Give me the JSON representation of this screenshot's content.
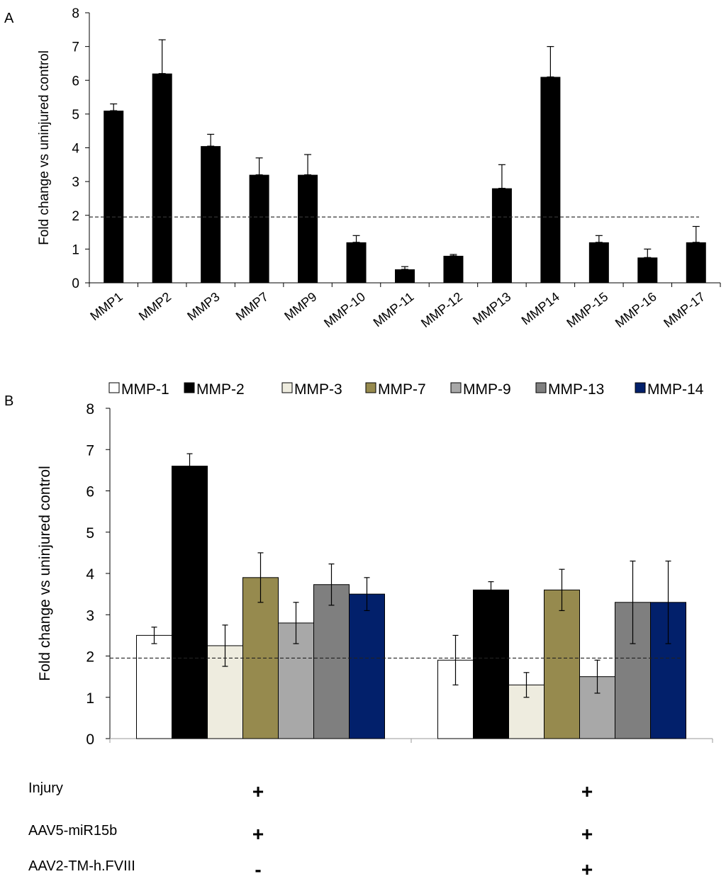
{
  "chart_data": [
    {
      "panel": "A",
      "type": "bar",
      "ylabel": "Fold change vs uninjured control",
      "ylim": [
        0,
        8
      ],
      "yticks": [
        0,
        1,
        2,
        3,
        4,
        5,
        6,
        7,
        8
      ],
      "threshold": 1.95,
      "categories": [
        "MMP1",
        "MMP2",
        "MMP3",
        "MMP7",
        "MMP9",
        "MMP-10",
        "MMP-11",
        "MMP-12",
        "MMP13",
        "MMP14",
        "MMP-15",
        "MMP-16",
        "MMP-17"
      ],
      "values": [
        5.1,
        6.2,
        4.05,
        3.2,
        3.2,
        1.2,
        0.4,
        0.8,
        2.8,
        6.1,
        1.2,
        0.75,
        1.2
      ],
      "errors": [
        0.2,
        1.0,
        0.35,
        0.5,
        0.6,
        0.2,
        0.08,
        0.04,
        0.7,
        0.9,
        0.2,
        0.25,
        0.47
      ]
    },
    {
      "panel": "B",
      "type": "bar",
      "ylabel": "Fold change vs uninjured control",
      "ylim": [
        0,
        8
      ],
      "yticks": [
        0,
        1,
        2,
        3,
        4,
        5,
        6,
        7,
        8
      ],
      "threshold": 1.95,
      "legend_position": "top",
      "series": [
        {
          "name": "MMP-1",
          "color": "#ffffff",
          "values": [
            2.5,
            1.9
          ],
          "errors": [
            0.2,
            0.6
          ]
        },
        {
          "name": "MMP-2",
          "color": "#000000",
          "values": [
            6.6,
            3.6
          ],
          "errors": [
            0.3,
            0.2
          ]
        },
        {
          "name": "MMP-3",
          "color": "#eeecdf",
          "values": [
            2.25,
            1.3
          ],
          "errors": [
            0.5,
            0.3
          ]
        },
        {
          "name": "MMP-7",
          "color": "#968a4e",
          "values": [
            3.9,
            3.6
          ],
          "errors": [
            0.6,
            0.5
          ]
        },
        {
          "name": "MMP-9",
          "color": "#a8a8a8",
          "values": [
            2.8,
            1.5
          ],
          "errors": [
            0.5,
            0.4
          ]
        },
        {
          "name": "MMP-13",
          "color": "#7f7f7f",
          "values": [
            3.73,
            3.3
          ],
          "errors": [
            0.5,
            1.0
          ]
        },
        {
          "name": "MMP-14",
          "color": "#02206b",
          "values": [
            3.5,
            3.3
          ],
          "errors": [
            0.4,
            1.0
          ]
        }
      ],
      "conditions": [
        {
          "label": "Injury",
          "marks": [
            "+",
            "+"
          ]
        },
        {
          "label": "AAV5-miR15b",
          "marks": [
            "+",
            "+"
          ]
        },
        {
          "label": "AAV2-TM-h.FVIII",
          "marks": [
            "-",
            "+"
          ]
        }
      ]
    }
  ]
}
